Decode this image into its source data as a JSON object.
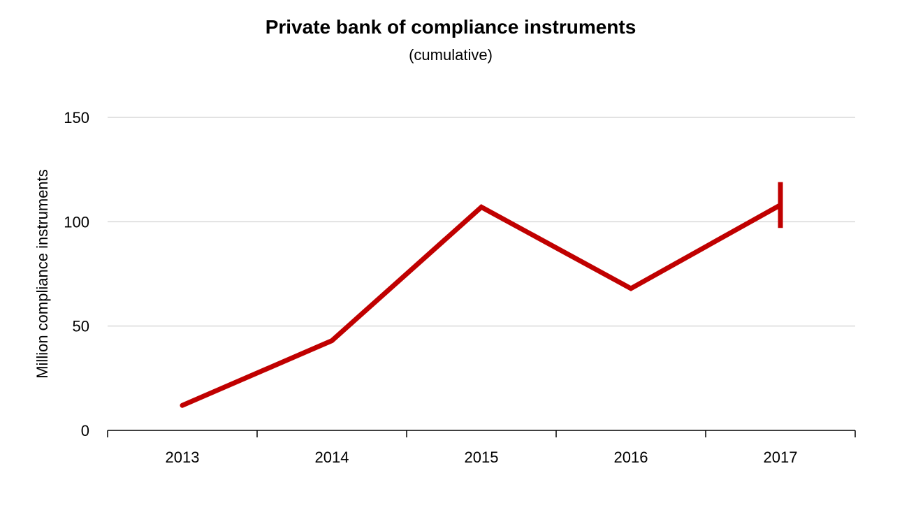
{
  "chart_data": {
    "type": "line",
    "title": "Private bank of compliance instruments",
    "subtitle": "(cumulative)",
    "xlabel": "",
    "ylabel": "Million compliance instruments",
    "categories": [
      "2013",
      "2014",
      "2015",
      "2016",
      "2017"
    ],
    "series": [
      {
        "values": [
          12,
          43,
          107,
          68,
          108
        ],
        "color": "#c00000"
      }
    ],
    "error_bar": {
      "category": "2017",
      "low": 97,
      "high": 119
    },
    "ylim": [
      0,
      150
    ],
    "yticks": [
      0,
      50,
      100,
      150
    ],
    "grid": true,
    "legend": "none"
  }
}
